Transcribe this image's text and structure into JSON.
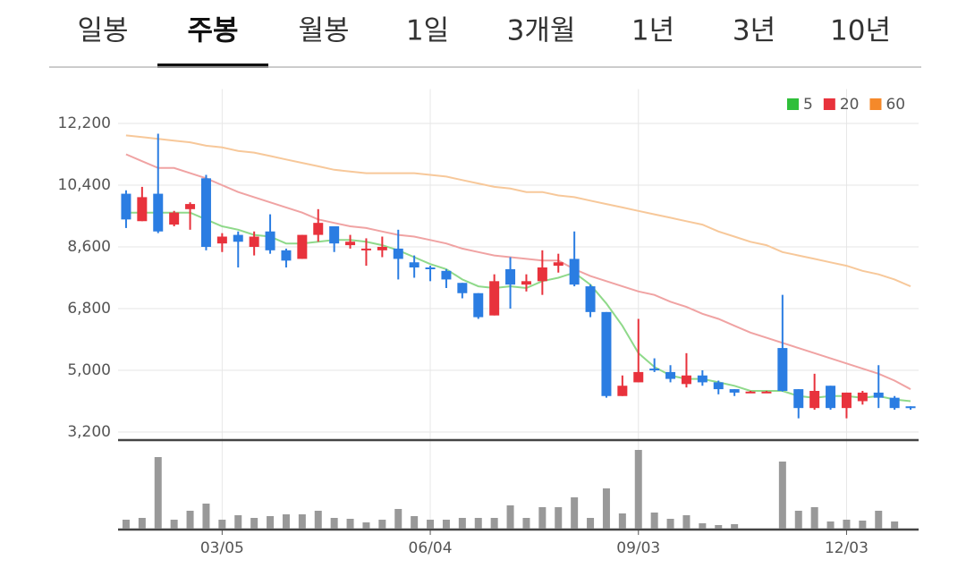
{
  "tabs": [
    "일봉",
    "주봉",
    "월봉",
    "1일",
    "3개월",
    "1년",
    "3년",
    "10년"
  ],
  "selected_tab": 1,
  "chart_data": {
    "type": "candlestick",
    "categories": [
      null,
      null,
      null,
      null,
      null,
      null,
      "03/05",
      null,
      null,
      null,
      null,
      null,
      null,
      null,
      null,
      null,
      null,
      null,
      null,
      "06/04",
      null,
      null,
      null,
      null,
      null,
      null,
      null,
      null,
      null,
      null,
      null,
      null,
      "09/03",
      null,
      null,
      null,
      null,
      null,
      null,
      null,
      null,
      null,
      null,
      null,
      null,
      "12/03",
      null,
      null,
      null,
      null
    ],
    "open": [
      10150,
      9350,
      10150,
      9250,
      9700,
      10600,
      8700,
      8950,
      8600,
      9050,
      8500,
      8250,
      8950,
      9200,
      8650,
      8500,
      8500,
      8550,
      8150,
      8000,
      7900,
      7550,
      7250,
      6600,
      7950,
      7500,
      7600,
      8050,
      8250,
      7450,
      6700,
      4250,
      4650,
      5050,
      4950,
      4600,
      4850,
      4650,
      4450,
      4350,
      4350,
      5650,
      4450,
      3900,
      4550,
      3900,
      4100,
      4350,
      4200,
      3950
    ],
    "high": [
      10250,
      10350,
      11900,
      9650,
      9900,
      10700,
      9000,
      9050,
      9050,
      9550,
      8550,
      8950,
      9700,
      9200,
      8950,
      8850,
      8900,
      9100,
      8350,
      8050,
      7950,
      7550,
      7250,
      7800,
      8300,
      7800,
      8500,
      8400,
      9050,
      7500,
      6700,
      4850,
      6500,
      5350,
      5150,
      5500,
      5000,
      4700,
      4450,
      4400,
      4400,
      7200,
      4450,
      4900,
      4550,
      4350,
      4400,
      5150,
      4250,
      3950
    ],
    "low": [
      9150,
      9350,
      9000,
      9200,
      9100,
      8500,
      8450,
      8000,
      8350,
      8400,
      8000,
      8250,
      8750,
      8450,
      8550,
      8050,
      8300,
      7650,
      7700,
      7600,
      7400,
      7100,
      6500,
      6600,
      6800,
      7300,
      7200,
      7850,
      7450,
      6550,
      4200,
      4250,
      4650,
      4950,
      4650,
      4500,
      4550,
      4300,
      4250,
      4350,
      4350,
      4380,
      3600,
      3850,
      3850,
      3600,
      4000,
      3900,
      3850,
      3850
    ],
    "close": [
      9400,
      10050,
      9050,
      9600,
      9850,
      8600,
      8900,
      8750,
      8900,
      8500,
      8200,
      8950,
      9300,
      8700,
      8750,
      8550,
      8600,
      8250,
      8000,
      7950,
      7650,
      7250,
      6550,
      7600,
      7500,
      7600,
      8000,
      8150,
      7500,
      6700,
      4250,
      4550,
      4950,
      5000,
      4750,
      4850,
      4650,
      4450,
      4350,
      4380,
      4380,
      4400,
      3900,
      4400,
      3900,
      4350,
      4350,
      4200,
      3900,
      3900
    ],
    "up_color": "#e8323c",
    "down_color": "#2b7de2",
    "series": [
      {
        "name": "5",
        "color": "#2fbf3a",
        "line_color": "#8fd98a",
        "values": [
          9600,
          9600,
          9600,
          9600,
          9600,
          9400,
          9200,
          9100,
          8950,
          8900,
          8700,
          8700,
          8750,
          8800,
          8800,
          8750,
          8650,
          8500,
          8300,
          8100,
          7950,
          7650,
          7450,
          7400,
          7450,
          7400,
          7600,
          7700,
          7850,
          7500,
          6950,
          6300,
          5500,
          5100,
          4850,
          4750,
          4750,
          4650,
          4550,
          4400,
          4400,
          4400,
          4250,
          4200,
          4250,
          4250,
          4200,
          4250,
          4150,
          4100
        ]
      },
      {
        "name": "20",
        "color": "#e8323c",
        "line_color": "#f0a3a3",
        "values": [
          11300,
          11100,
          10900,
          10900,
          10750,
          10600,
          10400,
          10200,
          10050,
          9900,
          9750,
          9600,
          9400,
          9300,
          9200,
          9150,
          9050,
          8950,
          8900,
          8800,
          8700,
          8550,
          8450,
          8350,
          8300,
          8250,
          8200,
          8200,
          7950,
          7750,
          7600,
          7450,
          7300,
          7200,
          7000,
          6850,
          6650,
          6500,
          6300,
          6100,
          5950,
          5800,
          5650,
          5500,
          5350,
          5200,
          5050,
          4900,
          4700,
          4450
        ]
      },
      {
        "name": "60",
        "color": "#f5892a",
        "line_color": "#f7c89a",
        "values": [
          11850,
          11800,
          11750,
          11700,
          11650,
          11550,
          11500,
          11400,
          11350,
          11250,
          11150,
          11050,
          10950,
          10850,
          10800,
          10750,
          10750,
          10750,
          10750,
          10700,
          10650,
          10550,
          10450,
          10350,
          10300,
          10200,
          10200,
          10100,
          10050,
          9950,
          9850,
          9750,
          9650,
          9550,
          9450,
          9350,
          9250,
          9050,
          8900,
          8750,
          8650,
          8450,
          8350,
          8250,
          8150,
          8050,
          7900,
          7800,
          7650,
          7450
        ]
      }
    ],
    "volume": [
      10,
      12,
      80,
      10,
      20,
      28,
      10,
      15,
      12,
      14,
      16,
      16,
      20,
      12,
      11,
      7,
      10,
      22,
      14,
      10,
      10,
      12,
      12,
      12,
      26,
      12,
      24,
      24,
      35,
      12,
      45,
      17,
      88,
      18,
      11,
      15,
      6,
      4,
      5,
      0,
      0,
      75,
      20,
      24,
      8,
      10,
      9,
      20,
      8,
      0
    ],
    "volume_color": "#999999",
    "ylim": [
      3000,
      13200
    ],
    "yticks": [
      {
        "value": 3200,
        "label": "3,200"
      },
      {
        "value": 5000,
        "label": "5,000"
      },
      {
        "value": 6800,
        "label": "6,800"
      },
      {
        "value": 8600,
        "label": "8,600"
      },
      {
        "value": 10400,
        "label": "10,400"
      },
      {
        "value": 12200,
        "label": "12,200"
      }
    ],
    "grid": true
  }
}
